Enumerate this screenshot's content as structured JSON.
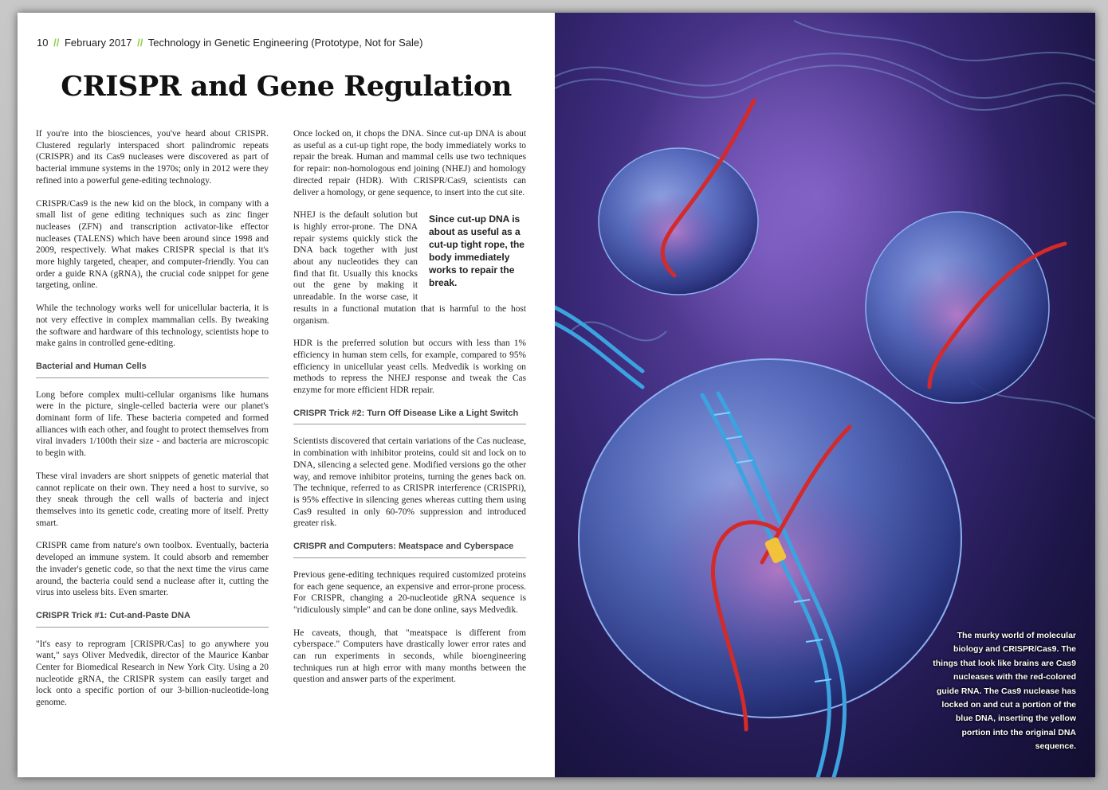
{
  "header": {
    "page_number": "10",
    "separator": "//",
    "date": "February 2017",
    "publication": "Technology in Genetic Engineering (Prototype, Not for Sale)"
  },
  "article": {
    "title": "CRISPR and Gene Regulation",
    "col1": {
      "p1": "If you're into the biosciences, you've heard about CRISPR. Clustered regularly interspaced short palindromic repeats (CRISPR) and its Cas9 nucleases were discovered as part of bacterial immune systems in the 1970s; only in 2012 were they refined into a powerful gene-editing technology.",
      "p2": "CRISPR/Cas9 is the new kid on the block, in company with a small list of gene editing techniques such as zinc finger nucleases (ZFN) and transcription activator-like effector nucleases (TALENS) which have been around since 1998 and 2009, respectively. What makes CRISPR special is that it's more highly targeted, cheaper, and computer-friendly. You can order a guide RNA (gRNA), the crucial code snippet for gene targeting, online.",
      "p3": "While the technology works well for unicellular bacteria, it is not very effective in complex mammalian cells. By tweaking the software and hardware of this technology, scientists hope to make gains in controlled gene-editing.",
      "h1": "Bacterial and Human Cells",
      "p4": "Long before complex multi-cellular organisms like humans were in the picture, single-celled bacteria were our planet's dominant form of life. These bacteria competed and formed alliances with each other, and fought to protect themselves from viral invaders 1/100th their size - and bacteria are microscopic to begin with.",
      "p5": "These viral invaders are short snippets of genetic material that cannot replicate on their own. They need a host to survive, so they sneak through the cell walls of bacteria and inject themselves into its genetic code, creating more of itself. Pretty smart.",
      "p6": "CRISPR came from nature's own toolbox. Eventually, bacteria developed an immune system. It could absorb and remember the invader's genetic code, so that the next time the virus came around, the bacteria could send a nuclease after it, cutting the virus into useless bits. Even smarter.",
      "h2": "CRISPR Trick #1: Cut-and-Paste DNA",
      "p7": "\"It's easy to reprogram [CRISPR/Cas] to go anywhere you want,\" says Oliver Medvedik, director of the Maurice Kanbar Center for Biomedical Research in New York City. Using a 20 nucleotide gRNA, the CRISPR system can easily target and lock onto a specific portion of our 3-billion-nucleotide-long genome."
    },
    "col2": {
      "p1": "Once locked on, it chops the DNA. Since cut-up DNA is about as useful as a cut-up tight rope, the body immediately works to repair the break. Human and mammal cells use two techniques for repair: non-homologous end joining (NHEJ) and homology directed repair (HDR). With CRISPR/Cas9, scientists can deliver a homology, or gene sequence, to insert into the cut site.",
      "pullquote": "Since cut-up DNA is about as useful as a cut-up tight rope, the body immediately works to repair the break.",
      "p2": "NHEJ is the default solution but is highly error-prone. The DNA repair systems quickly stick the DNA back together with just about any nucleotides they can find that fit. Usually this knocks out the gene by making it unreadable. In the worse case, it results in a functional mutation that is harmful to the host organism.",
      "p3": "HDR is the preferred solution but occurs with less than 1% efficiency in human stem cells, for example, compared to 95% efficiency in unicellular yeast cells. Medvedik is working on methods to repress the NHEJ response and tweak the Cas enzyme for more efficient HDR repair.",
      "h1": "CRISPR Trick #2: Turn Off Disease Like a Light Switch",
      "p4": "Scientists discovered that certain variations of the Cas nuclease, in combination with inhibitor proteins, could sit and lock on to DNA, silencing a selected gene. Modified versions go the other way, and remove inhibitor proteins, turning the genes back on. The technique, referred to as CRISPR interference (CRISPRi), is 95% effective in silencing genes whereas cutting them using Cas9 resulted in only 60-70% suppression and introduced greater risk.",
      "h2": "CRISPR and Computers: Meatspace and Cyberspace",
      "p5": "Previous gene-editing techniques required customized proteins for each gene sequence, an expensive and error-prone process. For CRISPR, changing a 20-nucleotide gRNA sequence is \"ridiculously simple\" and can be done online, says Medvedik.",
      "p6": "He caveats, though, that \"meatspace is different from cyberspace.\" Computers have drastically lower error rates and can run experiments in seconds, while bioengineering techniques run at high error with many months between the question and answer parts of the experiment."
    }
  },
  "figure": {
    "caption": "The murky world of molecular biology and CRISPR/Cas9. The things that look like brains are Cas9 nucleases with the red-colored guide RNA. The Cas9 nuclease has locked on and cut a portion of the blue DNA, inserting the yellow portion into the original DNA sequence.",
    "colors": {
      "background": "#2a1f60",
      "nuclease": "#5a78c8",
      "guide_rna": "#d42a2a",
      "dna": "#3ba3e0",
      "insert": "#f2c23a"
    }
  }
}
